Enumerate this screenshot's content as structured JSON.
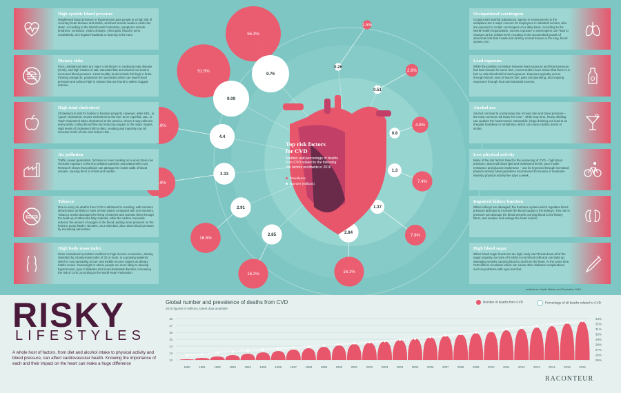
{
  "left_panels": [
    {
      "title": "High systolic blood pressure",
      "text": "Heightened blood pressure or hypertension puts people at a high risk of coronary heart disease and stroke, as blood vessels weaken under the strain. According to the World Heart Federation, symptoms include tiredness, confusion, vision changes, chest pain, blood in urine, nosebleeds, an irregular heartbeat or buzzing in the ears.",
      "icon": "heart-pulse-icon"
    },
    {
      "title": "Dietary risks",
      "text": "Poor, unbalanced diets are major contributors to cardiovascular disease (CVD), and high intakes of salt, saturated fats and alcohol can lead to increased blood pressure. Heart-healthy foods include fish high in brain-thinning omega-3s, potassium-rich avocados which can lower blood pressure and salmon high in nitrates that are found to widen clogged arteries.",
      "icon": "no-burger-icon"
    },
    {
      "title": "High total cholesterol",
      "text": "Cholesterol is vital for bodies to function properly. However, while HDL, or “good” cholesterol, moves cholesterol to the liver to be expelled, LDL, or “bad” cholesterol takes cholesterol to the arteries, where it may collect in artery walls, cutting blood flow and reducing oxygen to the major organs. High levels of cholesterol fall to diets, smoking and inactivity can all increase levels of LDL and reduce HDL.",
      "icon": "apple-icon"
    },
    {
      "title": "Air pollution",
      "text": "Traffic, power generation, factories or even cooking on a wood stove can increase exposure to the tiny pollution particles associated with CVD. Research shows that pollution can damage the inside walls of blood vessels, causing them to shrink and harden.",
      "icon": "factory-icon"
    },
    {
      "title": "Tobacco",
      "text": "One in every six deaths from CVD is attributed to smoking, with smokers almost twice as likely to have a heart attack compared with non-smokers. Tobacco smoke damages the lining of arteries and narrows them through the build-up of atheroma fatty material, while the carbon monoxide reduces the amount of oxygen in the blood, putting more pressure on the heart to pump harder. Nicotine, as a stimulant, also raises blood pressure by increasing adrenaline.",
      "icon": "no-smoking-icon"
    },
    {
      "title": "High body-mass index",
      "text": "Once considered a problem confined to high-income economies, obesity, classified by a body-mass index of 30 or more, is a growing epidemic which is now spreading to low- and middle-income nations as dietary habits evolve. Overweight or obese people are more likely to develop hypertension, type-2 diabetes and musculoskeletal disorder, increasing the risk of CVD, according to the World Heart Federation.",
      "icon": "body-icon"
    }
  ],
  "right_panels": [
    {
      "title": "Occupational carcinogens",
      "text": "Contact with harmful substances, agents or environments in the workplace are a major concern for employees in industrial sectors, who are exposed to certain carcinogens on a daily basis. According to the World Health Organization, excess exposure to carcinogens can “lead to changes at the cellular level, resulting in the uncontrolled growth of abnormal cells that invade and destroy normal tissues in the lung, blood system, etc”.",
      "icon": "lungs-icon"
    },
    {
      "title": "Lead exposure",
      "text": "While the positive correlation between lead exposure and blood pressure has been known for some time, recent studies have shown that there is in fact no safe threshold for lead exposure. Exposure typically occurs through historic uses of lead in fuel, paint and plumbing, and ongoing exposures through food and industrial sources.",
      "icon": "bottle-icon"
    },
    {
      "title": "Alcohol use",
      "text": "Alcohol can lead to a temporary rise in heart rate and blood pressure – the most common risk factor for CVD – while long-term, heavy drinking can weaken the heart muscle. Meanwhile, binge drinking can lead to an irregular heartbeat or arrhythmia, which can cause cardiac arrest or stroke.",
      "icon": "cocktail-icon"
    },
    {
      "title": "Low physical activity",
      "text": "Many of the risk factors linked to the worsening of CVD – high blood pressure, abnormal blood lipid and cholesterol levels, poor insulin resistance and glucose intolerance – can be improved through increased physical activity. Most guidelines recommend 30 minutes of moderate-intensity physical activity five days a week.",
      "icon": "bicycle-icon"
    },
    {
      "title": "Impaired kidney function",
      "text": "When kidneys are damaged, the hormone system which regulates blood pressure attempts to increase the blood supply to the kidneys. This rise in pressure can damage the blood vessels carrying blood to the kidney filters, and weaken and enlarge the heart muscle.",
      "icon": "kidneys-icon"
    },
    {
      "title": "High blood sugar",
      "text": "When blood sugar levels are too high, body can't break down all of the sugar properly, so more of it sticks to red blood cells and can build up, damaging vessels carrying blood to and from the heart. At the same time, CVD affects circulation which can cause other diabetes complications such as problems with eyes and feet.",
      "icon": "syringe-icon"
    }
  ],
  "center": {
    "title": "Top risk factors for CVD",
    "subtitle": "Number and percentage of deaths from CVD related to the following risk factors worldwide in 2016",
    "legend_prevalence": "Prevalence",
    "legend_number": "Number (millions)"
  },
  "chart_data": [
    {
      "type": "bubble",
      "title": "Top risk factors for CVD",
      "series": [
        {
          "name": "Prevalence",
          "values": [
            "55.3%",
            "51.5%",
            "24.9%",
            "16.9%",
            "16.5%",
            "16.2%",
            "16.1%",
            "7.8%",
            "7.4%",
            "4.8%",
            "2.9%",
            "1.5%"
          ]
        },
        {
          "name": "Number (millions)",
          "values": [
            9.76,
            9.09,
            4.4,
            3.33,
            2.91,
            2.85,
            2.84,
            1.37,
            1.3,
            0.8,
            0.51,
            0.26
          ]
        }
      ],
      "categories": [
        "High systolic blood pressure",
        "Dietary risks",
        "High total cholesterol",
        "Air pollution",
        "Tobacco",
        "High body-mass index",
        "High blood sugar",
        "Impaired kidney function",
        "Low physical activity",
        "Alcohol use",
        "Lead exposure",
        "Occupational carcinogens"
      ]
    },
    {
      "type": "bar",
      "title": "Global number and prevalence of deaths from CVD",
      "subtitle": "2016 figures in millions, latest data available",
      "categories": [
        "1990",
        "1991",
        "1992",
        "1993",
        "1994",
        "1995",
        "1996",
        "1997",
        "1998",
        "1999",
        "2000",
        "2001",
        "2002",
        "2003",
        "2004",
        "2005",
        "2006",
        "2007",
        "2008",
        "2009",
        "2010",
        "2011",
        "2012",
        "2013",
        "2014",
        "2015",
        "2016"
      ],
      "series": [
        {
          "name": "Number of deaths from CVD",
          "values": [
            12.1,
            12.3,
            12.5,
            12.7,
            12.9,
            13.1,
            13.3,
            13.5,
            13.7,
            13.9,
            14.1,
            14.3,
            14.5,
            14.7,
            14.9,
            15.1,
            15.3,
            15.5,
            15.7,
            15.9,
            16.1,
            16.3,
            16.5,
            16.7,
            16.9,
            17.3,
            17.6
          ]
        },
        {
          "name": "Percentage of all deaths related to CVD",
          "values": [
            25.9,
            26.1,
            26.4,
            26.6,
            26.8,
            27.0,
            27.2,
            27.4,
            27.6,
            27.8,
            28.0,
            28.2,
            28.4,
            28.6,
            28.9,
            29.1,
            29.4,
            29.7,
            30.0,
            30.3,
            30.6,
            31.0,
            31.3,
            31.6,
            31.9,
            32.2,
            32.5
          ]
        }
      ],
      "yticks_left": [
        "12",
        "13",
        "14",
        "15",
        "16",
        "17",
        "18"
      ],
      "yticks_right": [
        "25%",
        "26%",
        "27%",
        "28%",
        "29%",
        "30%",
        "31%",
        "32%",
        "33%"
      ],
      "ylim": [
        12,
        18
      ],
      "y2lim": [
        25,
        33
      ]
    }
  ],
  "colors": {
    "accent": "#e8566c",
    "bg": "#7ec6c3",
    "panel": "#9dd6d2",
    "dark": "#4a1a3a"
  },
  "brand": {
    "headline": "RISKY",
    "subheadline": "LIFESTYLES",
    "intro": "A whole host of factors, from diet and alcohol intake to physical activity and blood pressure, can affect cardiovascular health. Knowing the importance of each and their impact on the heart can make a huge difference",
    "logo": "RACONTEUR"
  },
  "source": "Institute for Health Metrics and Evaluation 2018"
}
